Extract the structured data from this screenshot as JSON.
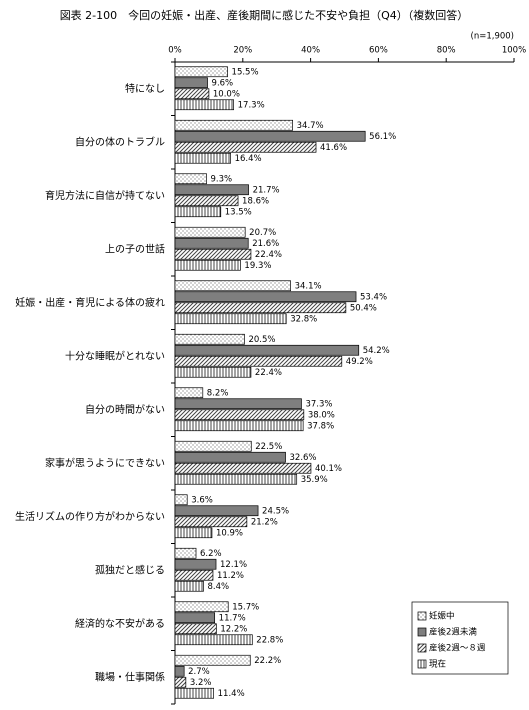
{
  "chart_data": {
    "type": "hbar",
    "title": "図表 2-100　今回の妊娠・出産、産後期間に感じた不安や負担（Q4）（複数回答）",
    "note": "(n=1,900)",
    "categories": [
      "特になし",
      "自分の体のトラブル",
      "育児方法に自信が持てない",
      "上の子の世話",
      "妊娠・出産・育児による体の疲れ",
      "十分な睡眠がとれない",
      "自分の時間がない",
      "家事が思うようにできない",
      "生活リズムの作り方がわからない",
      "孤独だと感じる",
      "経済的な不安がある",
      "職場・仕事関係"
    ],
    "series": [
      {
        "name": "妊娠中",
        "color": "#ffffff",
        "pattern": "dots",
        "values": [
          15.5,
          34.7,
          9.3,
          20.7,
          34.1,
          20.5,
          8.2,
          22.5,
          3.6,
          6.2,
          15.7,
          22.2
        ],
        "value_labels": [
          "15.5%",
          "34.7%",
          "9.3%",
          "20.7%",
          "34.1%",
          "20.5%",
          "8.2%",
          "22.5%",
          "3.6%",
          "6.2%",
          "15.7%",
          "22.2%"
        ]
      },
      {
        "name": "産後2週未満",
        "color": "#7f7f7f",
        "pattern": "solid",
        "values": [
          9.6,
          56.1,
          21.7,
          21.6,
          53.4,
          54.2,
          37.3,
          32.6,
          24.5,
          12.1,
          11.7,
          2.7
        ],
        "value_labels": [
          "9.6%",
          "56.1%",
          "21.7%",
          "21.6%",
          "53.4%",
          "54.2%",
          "37.3%",
          "32.6%",
          "24.5%",
          "12.1%",
          "11.7%",
          "2.7%"
        ]
      },
      {
        "name": "産後2週～８週",
        "color": "#ffffff",
        "pattern": "diagonal",
        "values": [
          10.0,
          41.6,
          18.6,
          22.4,
          50.4,
          49.2,
          38.0,
          40.1,
          21.2,
          11.2,
          12.2,
          3.2
        ],
        "value_labels": [
          "10.0%",
          "41.6%",
          "18.6%",
          "22.4%",
          "50.4%",
          "49.2%",
          "38.0%",
          "40.1%",
          "21.2%",
          "11.2%",
          "12.2%",
          "3.2%"
        ]
      },
      {
        "name": "現在",
        "color": "#ffffff",
        "pattern": "vertical",
        "values": [
          17.3,
          16.4,
          13.5,
          19.3,
          32.8,
          22.4,
          37.8,
          35.9,
          10.9,
          8.4,
          22.8,
          11.4
        ],
        "value_labels": [
          "17.3%",
          "16.4%",
          "13.5%",
          "19.3%",
          "32.8%",
          "22.4%",
          "37.8%",
          "35.9%",
          "10.9%",
          "8.4%",
          "22.8%",
          "11.4%"
        ]
      }
    ],
    "xlim": [
      0,
      100
    ],
    "xticks": [
      {
        "value": 0,
        "label": "0%"
      },
      {
        "value": 20,
        "label": "20%"
      },
      {
        "value": 40,
        "label": "40%"
      },
      {
        "value": 60,
        "label": "60%"
      },
      {
        "value": 80,
        "label": "80%"
      },
      {
        "value": 100,
        "label": "100%"
      }
    ],
    "legend": "lower right"
  }
}
